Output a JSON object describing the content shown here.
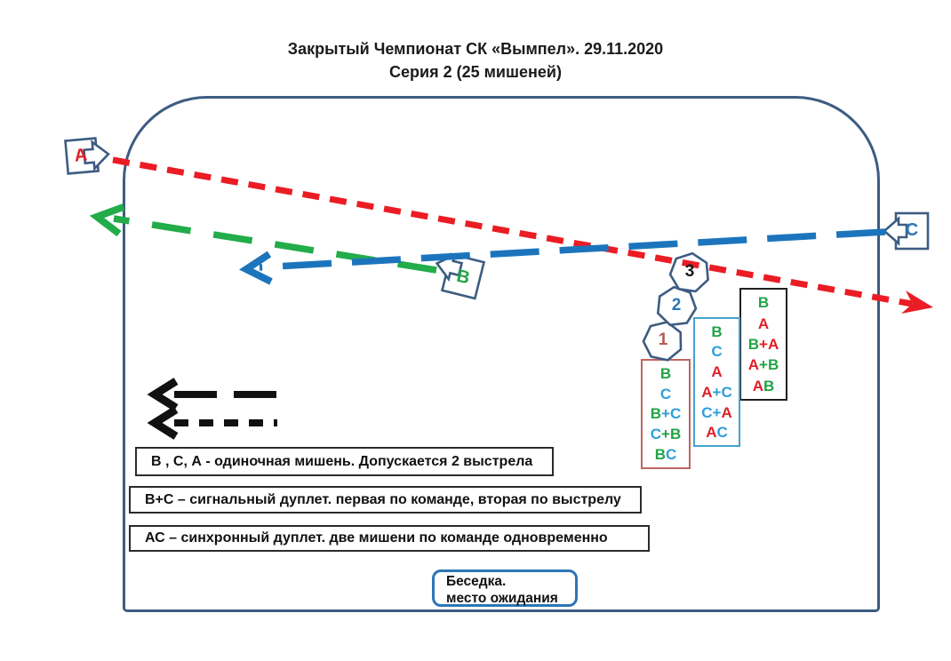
{
  "title": {
    "line1": "Закрытый Чемпионат СК «Вымпел». 29.11.2020",
    "line2": "Серия 2 (25 мишеней)"
  },
  "markers": [
    {
      "id": "A",
      "label": "А"
    },
    {
      "id": "B",
      "label": "В"
    },
    {
      "id": "C",
      "label": "С"
    }
  ],
  "stations": [
    {
      "num": "1"
    },
    {
      "num": "2"
    },
    {
      "num": "3"
    }
  ],
  "sequences": [
    {
      "station": "1",
      "border": "#BE6460",
      "rows": [
        [
          {
            "t": "В",
            "c": "g"
          }
        ],
        [
          {
            "t": "С",
            "c": "u"
          }
        ],
        [
          {
            "t": "В",
            "c": "g"
          },
          {
            "t": "+С",
            "c": "u"
          }
        ],
        [
          {
            "t": "С",
            "c": "u"
          },
          {
            "t": "+В",
            "c": "g"
          }
        ],
        [
          {
            "t": "В",
            "c": "g"
          },
          {
            "t": "С",
            "c": "u"
          }
        ]
      ]
    },
    {
      "station": "2",
      "border": "#44A3CE",
      "rows": [
        [
          {
            "t": "В",
            "c": "g"
          }
        ],
        [
          {
            "t": "С",
            "c": "u"
          }
        ],
        [
          {
            "t": "А",
            "c": "r"
          }
        ],
        [
          {
            "t": "А",
            "c": "r"
          },
          {
            "t": "+С",
            "c": "u"
          }
        ],
        [
          {
            "t": "С+",
            "c": "u"
          },
          {
            "t": "А",
            "c": "r"
          }
        ],
        [
          {
            "t": "А",
            "c": "r"
          },
          {
            "t": "С",
            "c": "u"
          }
        ]
      ]
    },
    {
      "station": "3",
      "border": "#1F1F1F",
      "rows": [
        [
          {
            "t": "В",
            "c": "g"
          }
        ],
        [
          {
            "t": "А",
            "c": "r"
          }
        ],
        [
          {
            "t": "В",
            "c": "g"
          },
          {
            "t": "+А",
            "c": "r"
          }
        ],
        [
          {
            "t": "А",
            "c": "r"
          },
          {
            "t": "+В",
            "c": "g"
          }
        ],
        [
          {
            "t": "А",
            "c": "r"
          },
          {
            "t": "В",
            "c": "g"
          }
        ]
      ]
    }
  ],
  "legend": {
    "lines": [
      "В , С, А - одиночная мишень. Допускается 2 выстрела",
      "В+С – сигнальный дуплет. первая по команде, вторая по выстрелу",
      "АС – синхронный дуплет. две мишени по команде одновременно"
    ]
  },
  "pavilion": {
    "line1": "Беседка.",
    "line2": "место ожидания"
  },
  "colors": {
    "letter_red": "#E01F26",
    "letter_green": "#21A347",
    "letter_cyan": "#2E9FD8",
    "marker_blue": "#2E75B6",
    "frame": "#3D5C82",
    "path_red": "#EB1C24",
    "path_green": "#22AC4A",
    "path_blue": "#1C75BC",
    "station1": "#B35A52",
    "station2": "#2E75B6",
    "station3": "#1A1A1A",
    "arrow_black": "#111111"
  }
}
